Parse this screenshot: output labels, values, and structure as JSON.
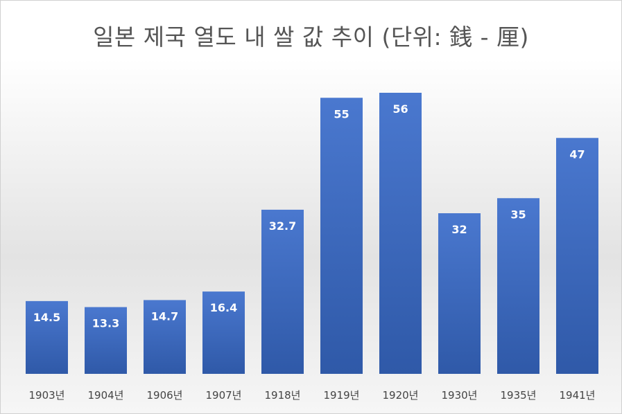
{
  "chart_data": {
    "type": "bar",
    "title": "일본 제국 열도 내 쌀 값 추이 (단위: 銭 - 厘)",
    "categories": [
      "1903년",
      "1904년",
      "1906년",
      "1907년",
      "1918년",
      "1919년",
      "1920년",
      "1930년",
      "1935년",
      "1941년"
    ],
    "values": [
      14.5,
      13.3,
      14.7,
      16.4,
      32.7,
      55,
      56,
      32,
      35,
      47
    ],
    "data_labels": [
      "14.5",
      "13.3",
      "14.7",
      "16.4",
      "32.7",
      "55",
      "56",
      "32",
      "35",
      "47"
    ],
    "ylim": [
      0,
      60
    ],
    "grid": false,
    "legend": "none",
    "bar_color": "#4472c4"
  }
}
